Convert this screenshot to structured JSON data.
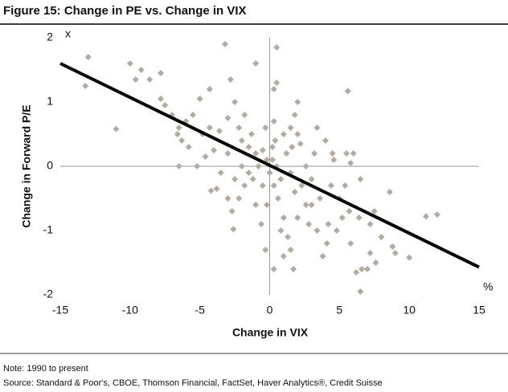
{
  "chart_data": {
    "type": "scatter",
    "title": "Figure 15: Change in PE vs. Change in VIX",
    "x_label": "Change  in VIX",
    "y_label": "Change  in Forward P/E",
    "x_unit": "%",
    "y_unit": "x",
    "note": "Note: 1990 to present",
    "source": "Source: Standard & Poor's, CBOE, Thomson Financial, FactSet, Haver Analytics®, Credit Suisse",
    "xlim": [
      -15,
      15
    ],
    "ylim": [
      -2,
      2
    ],
    "xticks": [
      -15,
      -10,
      -5,
      0,
      5,
      10,
      15
    ],
    "yticks": [
      -2,
      -1,
      0,
      1,
      2
    ],
    "series": [
      {
        "color": "#b3aaa2",
        "x": [
          -13,
          -13.2,
          -11,
          -10,
          -9.6,
          -9.2,
          -8.6,
          -7.8,
          -7.8,
          -7.5,
          -7,
          -6.5,
          -6.6,
          -6.5,
          -6.3,
          -5,
          -4.3,
          -4.3,
          -3.2,
          -2.8,
          -2.5,
          -3,
          -3,
          -2.5,
          -2.7,
          -2.6,
          -2.2,
          -1.5,
          -1,
          -1.3,
          -1,
          -0.5,
          -1,
          0.5,
          0.5,
          0.3,
          0.3,
          0.2,
          0.2,
          0.3,
          0.3,
          0.6,
          1,
          1.3,
          1.5,
          2,
          2,
          2.2,
          3,
          3,
          3.4,
          3.8,
          4,
          4.4,
          4.6,
          5,
          5.4,
          5.6,
          5.7,
          5.8,
          5.5,
          5.8,
          6,
          6.2,
          6.5,
          6.4,
          6.6,
          7,
          7.2,
          7.5,
          7.2,
          7.6,
          8.6,
          8.8,
          9,
          10,
          11.2,
          12,
          -4,
          -4.2,
          -3.5,
          -3.8,
          -3,
          -2,
          -2,
          -1.8,
          -1.5,
          -0.8,
          -0.5,
          -0.2,
          0,
          0.5,
          0.8,
          1.2,
          1.5,
          1.8,
          2.3,
          2.6,
          1,
          1.5,
          -0.3,
          -0.6,
          -0.3,
          0.8,
          2,
          2.6,
          3.6,
          4.2,
          4.8,
          5.2,
          1.8,
          -1.8,
          -2.2,
          -5.8,
          -5.2,
          -4.6,
          -4.8,
          -3.6,
          -6,
          -5.5,
          -1.2,
          0.4,
          1.6,
          3.2,
          3.4,
          6.5,
          4.5,
          2.8,
          -0.2,
          1,
          1.7,
          4.1,
          8
        ],
        "y": [
          1.7,
          1.25,
          0.58,
          1.6,
          1.35,
          1.5,
          1.35,
          1.45,
          1.05,
          0.95,
          0.8,
          0.6,
          0.5,
          0,
          0.4,
          1.05,
          0.6,
          1.2,
          1.9,
          1.35,
          1,
          0.75,
          -0.5,
          -0.2,
          -0.7,
          -0.98,
          -0.5,
          0.3,
          1.6,
          0.5,
          0.2,
          -0.3,
          -0.6,
          1.85,
          1.3,
          1.2,
          0.7,
          0.3,
          0.1,
          -0.3,
          -1.6,
          -0.5,
          -0.8,
          -1.1,
          -1.3,
          0.5,
          1,
          0.35,
          -0.2,
          -0.6,
          -1,
          -1.4,
          0.4,
          -0.3,
          0.1,
          -0.5,
          -0.3,
          1.17,
          -0.7,
          -1.2,
          0.2,
          0.05,
          0.2,
          -1.65,
          -1.95,
          -0.8,
          -1.6,
          -1.6,
          -1.35,
          -0.7,
          -0.9,
          -1.5,
          -0.4,
          -1.25,
          -1.35,
          -1.42,
          -0.78,
          -0.75,
          0.25,
          -0.38,
          -0.1,
          -0.35,
          0.2,
          0,
          0.4,
          -0.3,
          -0.1,
          0,
          0.25,
          0.1,
          -0.1,
          0,
          -0.2,
          0.2,
          -0.1,
          -0.4,
          -0.3,
          0,
          0.5,
          0.6,
          0.6,
          -0.9,
          -1.3,
          -1,
          -0.8,
          -0.6,
          -0.5,
          -0.9,
          -1,
          -0.8,
          0.8,
          0.8,
          0.6,
          0.3,
          0,
          0.15,
          0.5,
          0.55,
          0.7,
          0.8,
          -0.2,
          0.4,
          0.3,
          0.2,
          0.6,
          -0.2,
          0.2,
          -0.9,
          -0.6,
          -1.4,
          -1.6,
          -1.2,
          -1.1
        ]
      }
    ],
    "trend_line": {
      "color": "#000000",
      "x": [
        -15,
        15
      ],
      "y": [
        1.6,
        -1.57
      ]
    }
  }
}
